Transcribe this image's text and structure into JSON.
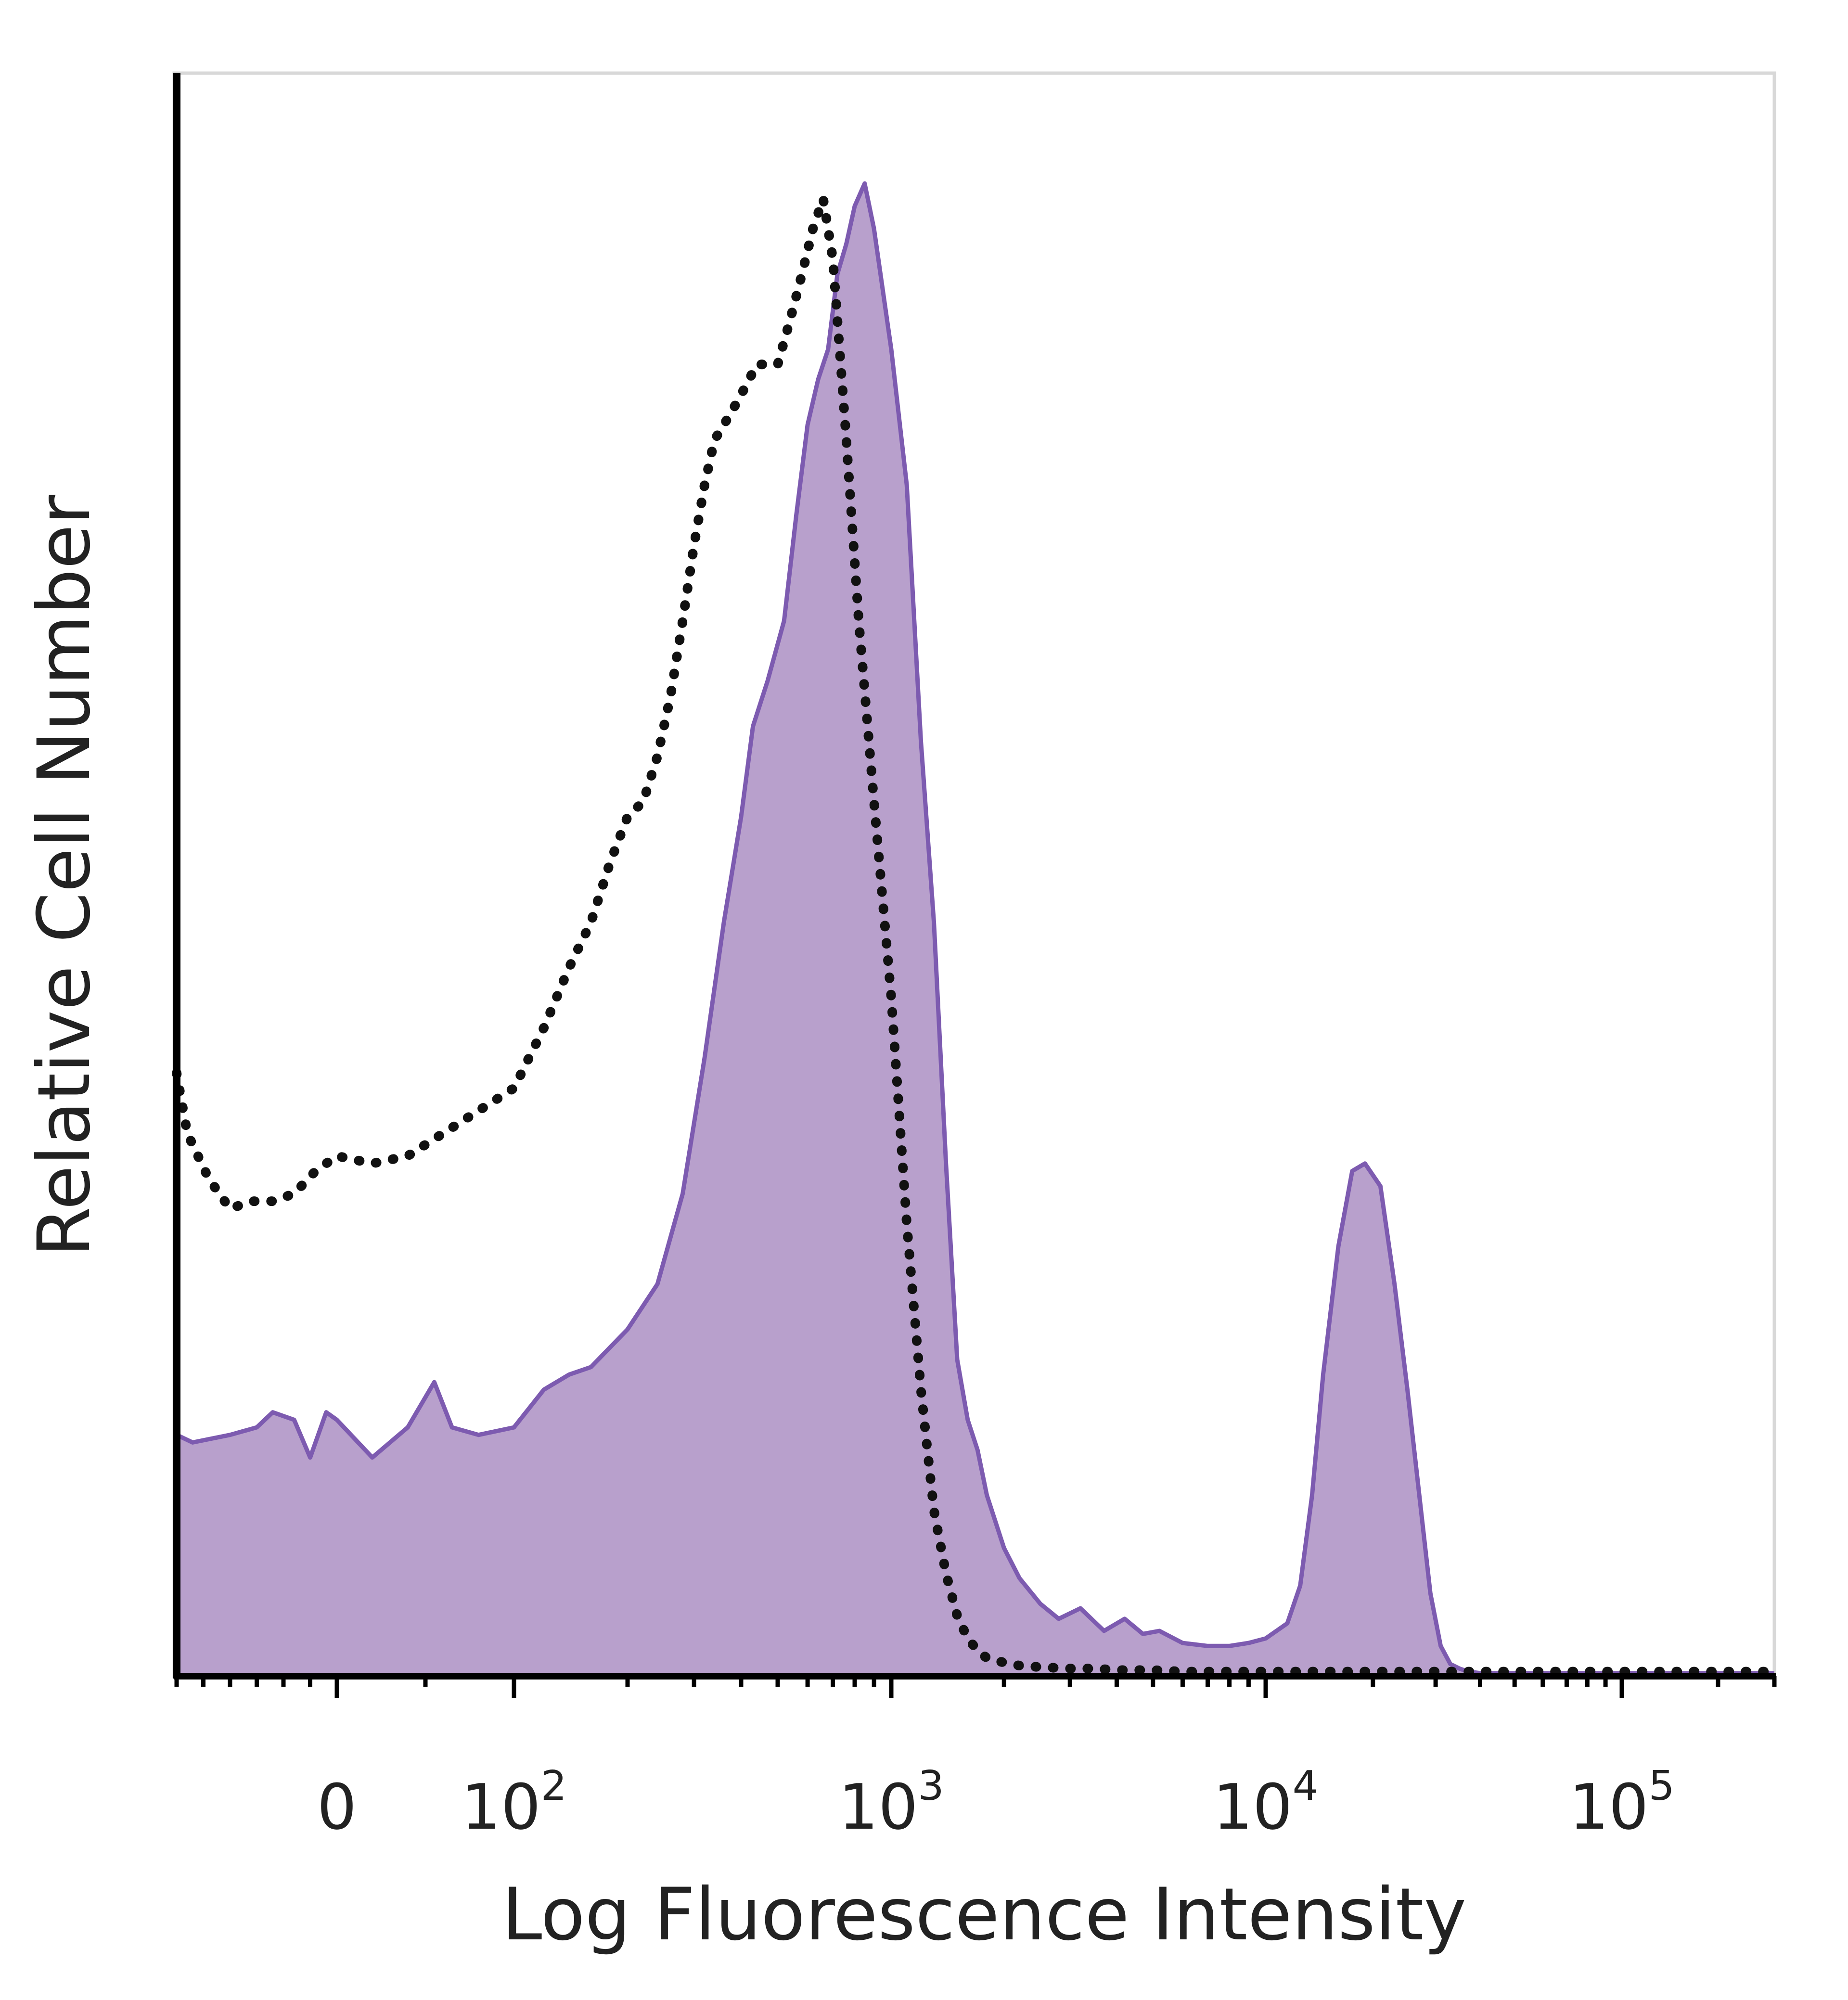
{
  "chart_data": {
    "type": "area",
    "xlabel": "Log Fluorescence Intensity",
    "ylabel": "Relative Cell Number",
    "x_scale": "biexponential",
    "xlim": [
      -300,
      300000
    ],
    "ylim": [
      0,
      1
    ],
    "x_ticks": [
      {
        "value": 0,
        "label": "0"
      },
      {
        "value": 100,
        "label": "10",
        "exp": "2"
      },
      {
        "value": 1000,
        "label": "10",
        "exp": "3"
      },
      {
        "value": 10000,
        "label": "10",
        "exp": "4"
      },
      {
        "value": 100000,
        "label": "10",
        "exp": "5"
      }
    ],
    "series": [
      {
        "style": "filled",
        "color": "#7d5bb0",
        "fill": "#b8a0cc",
        "x": [
          -300,
          -270,
          -200,
          -150,
          -120,
          -80,
          -50,
          -20,
          0,
          20,
          40,
          55,
          65,
          80,
          100,
          120,
          140,
          160,
          200,
          240,
          280,
          320,
          360,
          400,
          430,
          470,
          520,
          560,
          600,
          640,
          680,
          720,
          760,
          800,
          850,
          900,
          1000,
          1100,
          1200,
          1300,
          1400,
          1500,
          1600,
          1700,
          1800,
          2000,
          2200,
          2500,
          2800,
          3200,
          3700,
          4200,
          4700,
          5200,
          6000,
          7000,
          8000,
          9000,
          10000,
          11500,
          12500,
          13500,
          14500,
          16000,
          17500,
          19000,
          21000,
          23000,
          25000,
          27000,
          29000,
          31000,
          33000,
          35000,
          37000,
          40000,
          45000,
          50000,
          60000,
          80000,
          100000,
          150000,
          200000,
          300000
        ],
        "y": [
          0.16,
          0.155,
          0.16,
          0.165,
          0.175,
          0.17,
          0.145,
          0.175,
          0.17,
          0.145,
          0.165,
          0.195,
          0.165,
          0.16,
          0.165,
          0.19,
          0.2,
          0.205,
          0.23,
          0.26,
          0.32,
          0.41,
          0.5,
          0.57,
          0.63,
          0.66,
          0.7,
          0.77,
          0.83,
          0.86,
          0.88,
          0.93,
          0.95,
          0.975,
          0.99,
          0.96,
          0.88,
          0.79,
          0.62,
          0.5,
          0.34,
          0.21,
          0.17,
          0.15,
          0.12,
          0.085,
          0.065,
          0.048,
          0.038,
          0.045,
          0.03,
          0.038,
          0.028,
          0.03,
          0.022,
          0.02,
          0.02,
          0.022,
          0.025,
          0.035,
          0.06,
          0.12,
          0.2,
          0.285,
          0.335,
          0.34,
          0.325,
          0.26,
          0.19,
          0.12,
          0.055,
          0.02,
          0.008,
          0.005,
          0.003,
          0.002,
          0.002,
          0.002,
          0.002,
          0.002,
          0.002,
          0.002,
          0.002,
          0.002
        ]
      },
      {
        "style": "dotted",
        "color": "#111111",
        "x": [
          -300,
          -280,
          -240,
          -200,
          -160,
          -120,
          -80,
          -40,
          0,
          20,
          40,
          60,
          80,
          100,
          120,
          140,
          160,
          180,
          200,
          220,
          240,
          260,
          280,
          300,
          320,
          340,
          360,
          380,
          400,
          420,
          440,
          470,
          500,
          540,
          580,
          620,
          660,
          700,
          760,
          820,
          900,
          1000,
          1100,
          1200,
          1300,
          1400,
          1500,
          1600,
          1700,
          1800,
          2000,
          2200,
          2500,
          3000,
          3500,
          4000,
          5000,
          6000,
          8000,
          10000,
          20000,
          40000,
          100000,
          300000
        ],
        "y": [
          0.4,
          0.36,
          0.33,
          0.31,
          0.315,
          0.315,
          0.32,
          0.335,
          0.345,
          0.34,
          0.345,
          0.36,
          0.375,
          0.39,
          0.43,
          0.47,
          0.5,
          0.54,
          0.57,
          0.58,
          0.61,
          0.65,
          0.7,
          0.75,
          0.79,
          0.82,
          0.83,
          0.84,
          0.85,
          0.86,
          0.87,
          0.87,
          0.87,
          0.9,
          0.93,
          0.96,
          0.98,
          0.94,
          0.82,
          0.7,
          0.58,
          0.45,
          0.3,
          0.19,
          0.11,
          0.068,
          0.04,
          0.025,
          0.017,
          0.012,
          0.009,
          0.007,
          0.006,
          0.005,
          0.005,
          0.004,
          0.004,
          0.003,
          0.003,
          0.003,
          0.003,
          0.003,
          0.003,
          0.003
        ]
      }
    ]
  }
}
